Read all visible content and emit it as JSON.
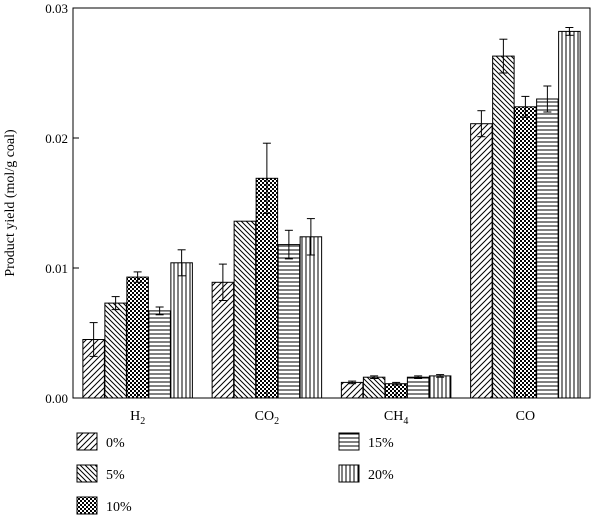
{
  "chart_data": {
    "type": "bar",
    "title": "",
    "xlabel": "",
    "ylabel": "Product yield (mol/g coal)",
    "ylim": [
      0,
      0.03
    ],
    "yticks": [
      "0.00",
      "0.01",
      "0.02",
      "0.03"
    ],
    "categories": [
      {
        "base": "H",
        "sub": "2"
      },
      {
        "base": "CO",
        "sub": "2"
      },
      {
        "base": "CH",
        "sub": "4"
      },
      {
        "base": "CO",
        "sub": ""
      }
    ],
    "series": [
      {
        "name": "0%",
        "pattern": "diag-up",
        "values": [
          0.0045,
          0.0089,
          0.0012,
          0.0211
        ],
        "errors": [
          0.0013,
          0.0014,
          0.0001,
          0.001
        ]
      },
      {
        "name": "5%",
        "pattern": "diag-down",
        "values": [
          0.0073,
          0.0136,
          0.0016,
          0.0263
        ],
        "errors": [
          0.0005,
          0.0,
          0.0001,
          0.0013
        ]
      },
      {
        "name": "10%",
        "pattern": "checker",
        "values": [
          0.0093,
          0.0169,
          0.0011,
          0.0224
        ],
        "errors": [
          0.0004,
          0.0027,
          0.0001,
          0.0008
        ]
      },
      {
        "name": "15%",
        "pattern": "horizontal",
        "values": [
          0.0067,
          0.0118,
          0.0016,
          0.023
        ],
        "errors": [
          0.0003,
          0.0011,
          0.0001,
          0.001
        ]
      },
      {
        "name": "20%",
        "pattern": "vertical",
        "values": [
          0.0104,
          0.0124,
          0.0017,
          0.0282
        ],
        "errors": [
          0.001,
          0.0014,
          0.0001,
          0.0003
        ]
      }
    ],
    "legend": {
      "position": "bottom",
      "columns": 2
    },
    "grid": false
  }
}
